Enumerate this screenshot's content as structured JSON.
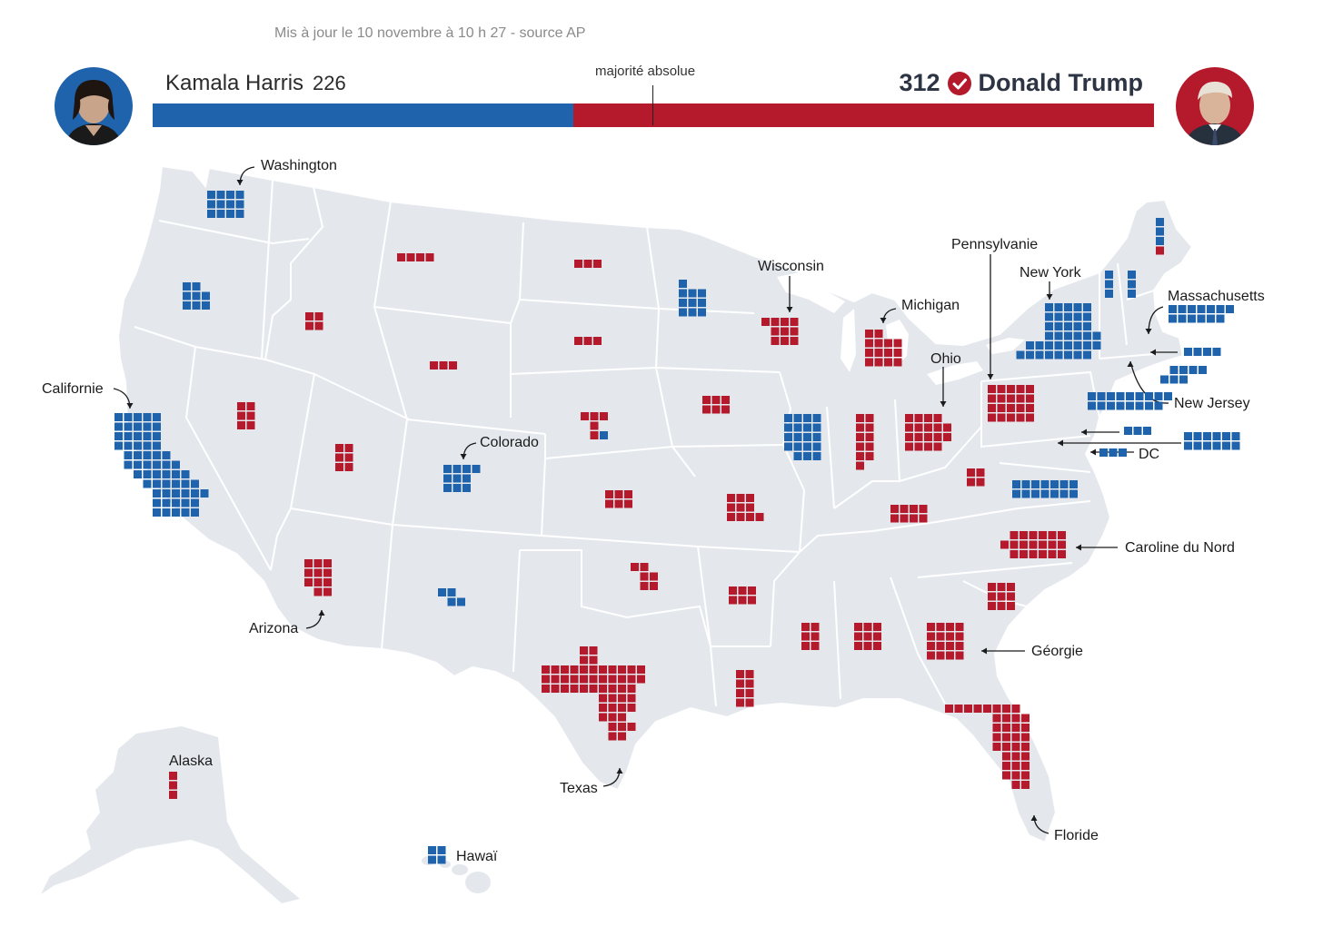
{
  "header": {
    "updated": "Mis à jour le 10 novembre à 10 h 27 - source AP",
    "majority_label": "majorité absolue"
  },
  "candidates": {
    "left": {
      "name": "Kamala Harris",
      "votes": "226",
      "color": "#1f63ad"
    },
    "right": {
      "name": "Donald Trump",
      "votes": "312",
      "color": "#b5192c",
      "winner": true
    }
  },
  "colors": {
    "dem": "#1f63ad",
    "rep": "#b5192c",
    "land": "#e4e8ed",
    "border": "#ffffff"
  },
  "bar": {
    "total": 538,
    "majority": 270,
    "dem": 226,
    "rep": 312
  },
  "labels": [
    "Washington",
    "Wisconsin",
    "Pennsylvanie",
    "Michigan",
    "New York",
    "Massachusetts",
    "Ohio",
    "Californie",
    "Colorado",
    "New Jersey",
    "DC",
    "Caroline du Nord",
    "Arizona",
    "Géorgie",
    "Alaska",
    "Texas",
    "Floride",
    "Hawaï"
  ]
}
